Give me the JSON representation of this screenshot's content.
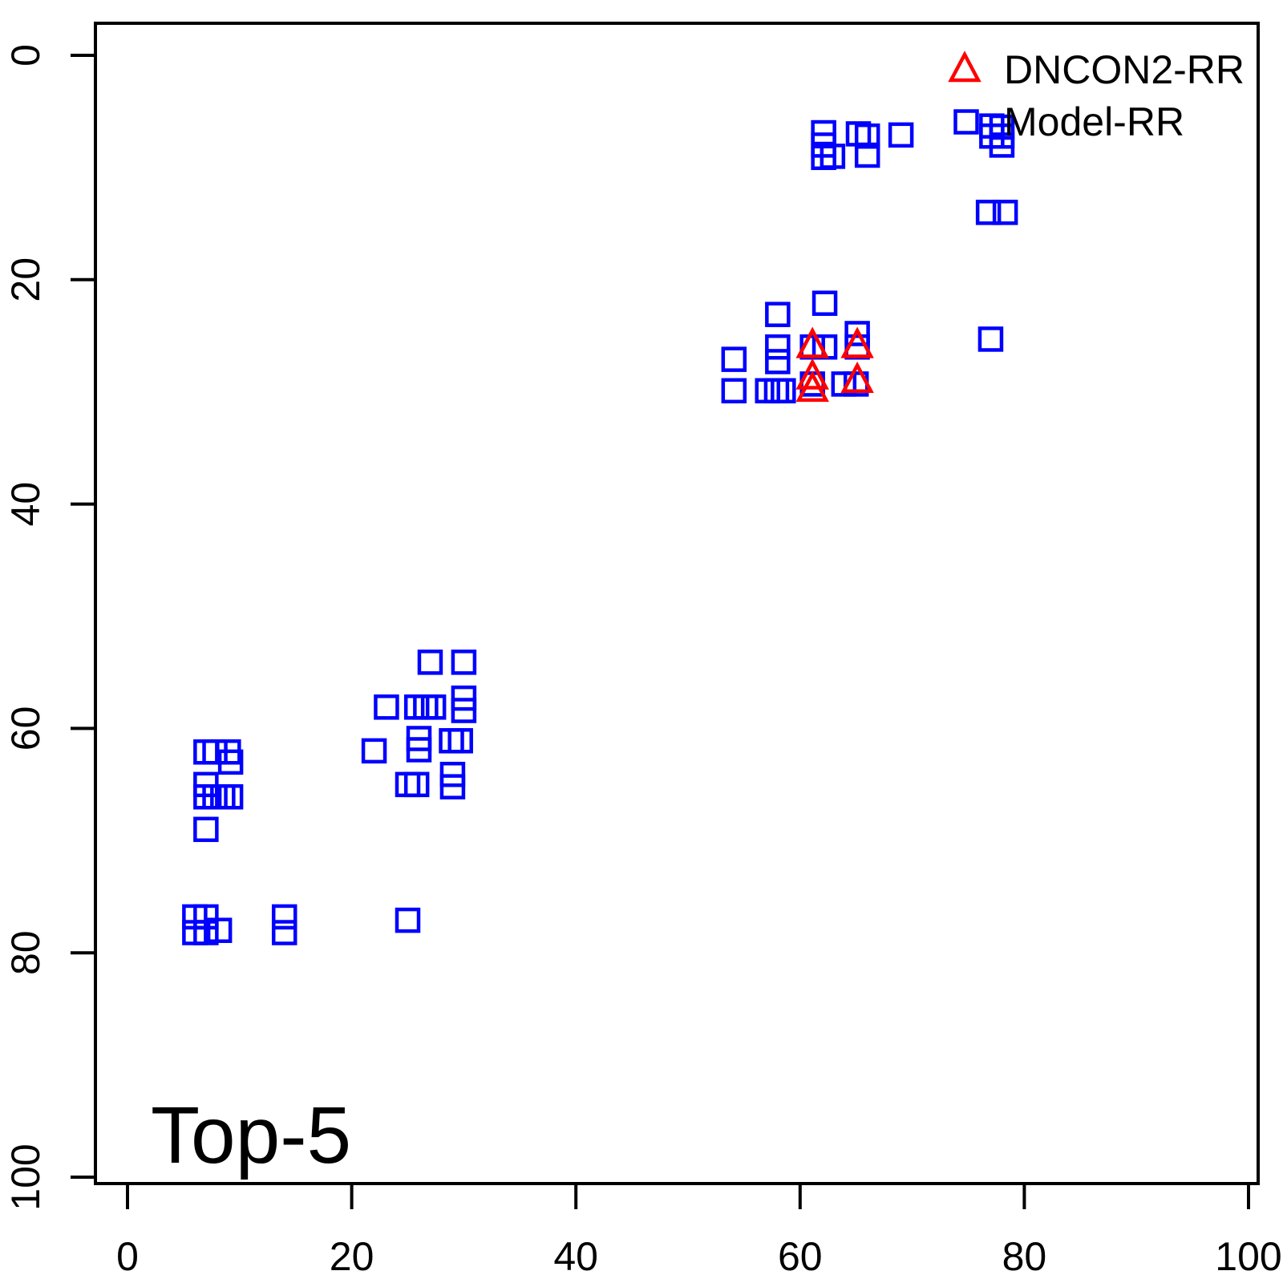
{
  "figure": {
    "background": "#ffffff",
    "annotation": "Top-5"
  },
  "legend": {
    "position": "top-right",
    "items": [
      {
        "label": "DNCON2-RR",
        "marker": "triangle",
        "color": "#ff0000"
      },
      {
        "label": "Model-RR",
        "marker": "square",
        "color": "#0000ff"
      }
    ]
  },
  "chart_data": {
    "type": "scatter",
    "title": "",
    "annotation": "Top-5",
    "xlabel": "",
    "ylabel": "",
    "xlim": [
      0,
      100
    ],
    "ylim": [
      100,
      0
    ],
    "y_axis_reversed": true,
    "grid": false,
    "x_ticks": [
      0,
      20,
      40,
      60,
      80,
      100
    ],
    "y_ticks": [
      0,
      20,
      40,
      60,
      80,
      100
    ],
    "legend_position": "top-right",
    "series": [
      {
        "name": "Model-RR",
        "marker": "square",
        "color": "#0000ff",
        "points": [
          [
            62.1,
            6.9
          ],
          [
            62.1,
            8.0
          ],
          [
            62.1,
            9.1
          ],
          [
            62.9,
            9.0
          ],
          [
            65.2,
            7.0
          ],
          [
            66.0,
            7.2
          ],
          [
            66.0,
            8.9
          ],
          [
            69.0,
            7.1
          ],
          [
            77.1,
            6.3
          ],
          [
            78.0,
            6.4
          ],
          [
            77.1,
            7.2
          ],
          [
            78.0,
            7.2
          ],
          [
            78.0,
            8.0
          ],
          [
            76.8,
            14.0
          ],
          [
            78.3,
            14.0
          ],
          [
            58.0,
            23.1
          ],
          [
            62.2,
            22.1
          ],
          [
            54.1,
            27.1
          ],
          [
            58.0,
            26.0
          ],
          [
            58.0,
            27.3
          ],
          [
            61.1,
            26.0
          ],
          [
            62.2,
            26.0
          ],
          [
            65.1,
            24.8
          ],
          [
            65.1,
            26.0
          ],
          [
            54.1,
            29.9
          ],
          [
            57.1,
            29.9
          ],
          [
            57.9,
            29.9
          ],
          [
            58.5,
            29.9
          ],
          [
            61.1,
            29.3
          ],
          [
            63.9,
            29.3
          ],
          [
            65.0,
            29.3
          ],
          [
            77.0,
            25.3
          ],
          [
            27.0,
            54.1
          ],
          [
            30.0,
            54.1
          ],
          [
            23.1,
            58.1
          ],
          [
            25.8,
            58.1
          ],
          [
            26.6,
            58.1
          ],
          [
            27.3,
            58.1
          ],
          [
            30.0,
            57.3
          ],
          [
            30.0,
            58.4
          ],
          [
            22.0,
            62.0
          ],
          [
            26.0,
            60.9
          ],
          [
            26.0,
            61.9
          ],
          [
            28.9,
            61.1
          ],
          [
            29.7,
            61.1
          ],
          [
            25.0,
            65.0
          ],
          [
            25.8,
            65.0
          ],
          [
            29.0,
            64.1
          ],
          [
            29.0,
            65.2
          ],
          [
            7.0,
            62.1
          ],
          [
            7.8,
            62.1
          ],
          [
            9.0,
            62.1
          ],
          [
            9.2,
            63.0
          ],
          [
            7.0,
            65.0
          ],
          [
            7.0,
            66.1
          ],
          [
            7.8,
            66.1
          ],
          [
            8.5,
            66.1
          ],
          [
            9.2,
            66.1
          ],
          [
            7.0,
            69.0
          ],
          [
            6.0,
            76.8
          ],
          [
            7.0,
            76.8
          ],
          [
            6.0,
            78.2
          ],
          [
            7.0,
            78.2
          ],
          [
            8.2,
            78.0
          ],
          [
            14.0,
            76.8
          ],
          [
            14.0,
            78.2
          ],
          [
            25.0,
            77.1
          ]
        ]
      },
      {
        "name": "DNCON2-RR",
        "marker": "triangle",
        "color": "#ff0000",
        "points": [
          [
            61.1,
            25.9
          ],
          [
            65.1,
            25.9
          ],
          [
            61.1,
            28.7
          ],
          [
            61.1,
            29.8
          ],
          [
            65.1,
            29.0
          ]
        ]
      }
    ]
  }
}
